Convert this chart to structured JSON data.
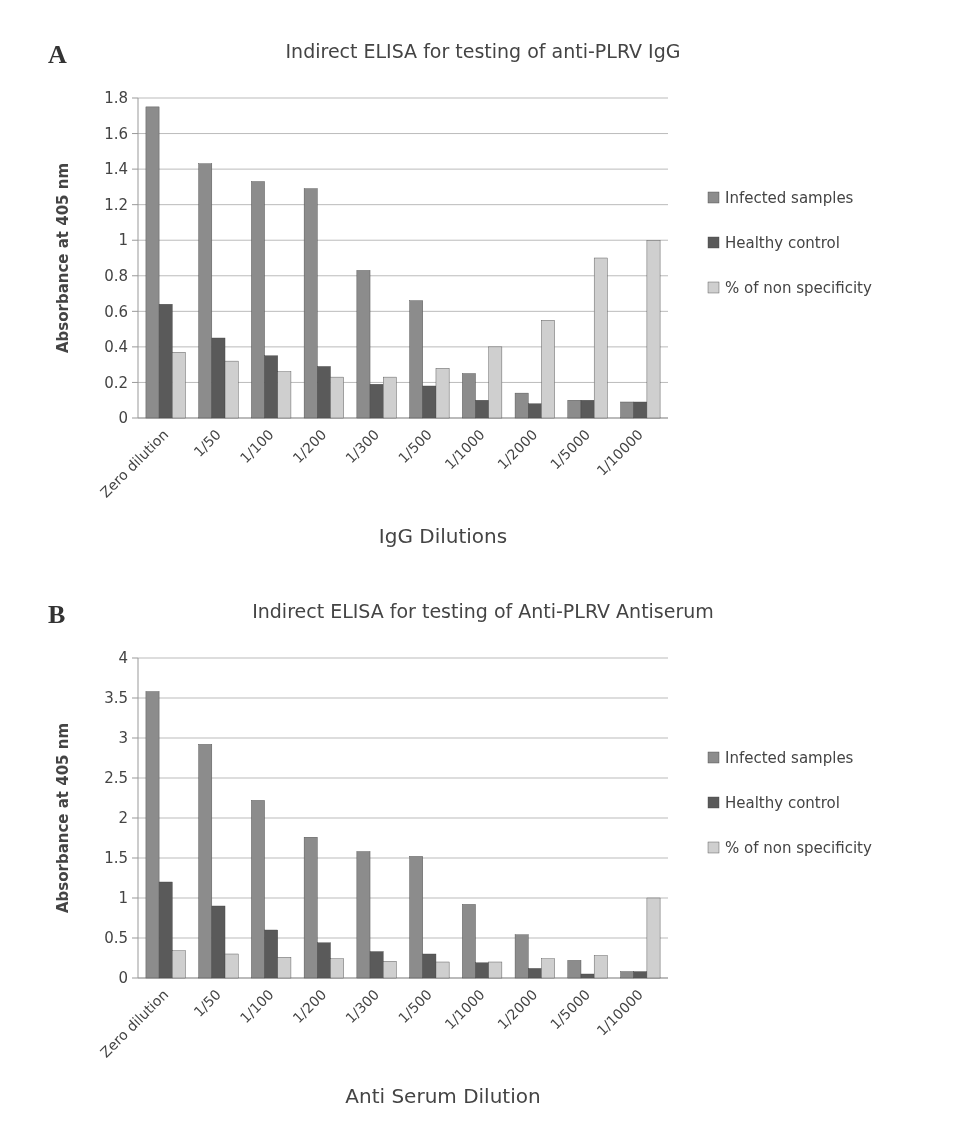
{
  "chart_data": [
    {
      "type": "bar",
      "title": "Indirect ELISA for testing of anti-PLRV IgG",
      "xlabel": "IgG Dilutions",
      "ylabel": "Absorbance at 405 nm",
      "annotations": [
        "A"
      ],
      "categories": [
        "Zero dilution",
        "1/50",
        "1/100",
        "1/200",
        "1/300",
        "1/500",
        "1/1000",
        "1/2000",
        "1/5000",
        "1/10000"
      ],
      "series": [
        {
          "name": "Infected samples",
          "color": "#8c8c8c",
          "values": [
            1.75,
            1.43,
            1.33,
            1.29,
            0.83,
            0.66,
            0.25,
            0.14,
            0.1,
            0.09
          ]
        },
        {
          "name": "Healthy control",
          "color": "#5a5a5a",
          "values": [
            0.64,
            0.45,
            0.35,
            0.29,
            0.19,
            0.18,
            0.1,
            0.08,
            0.1,
            0.09
          ]
        },
        {
          "name": "% of non specificity",
          "color": "#cfcfcf",
          "values": [
            0.37,
            0.32,
            0.26,
            0.23,
            0.23,
            0.28,
            0.4,
            0.55,
            0.9,
            1.0
          ]
        }
      ],
      "ylim": [
        0,
        1.8
      ],
      "yticks": [
        0,
        0.2,
        0.4,
        0.6,
        0.8,
        1,
        1.2,
        1.4,
        1.6,
        1.8
      ],
      "grid": "y",
      "legend": "right"
    },
    {
      "type": "bar",
      "title": "Indirect ELISA for testing of Anti-PLRV Antiserum",
      "xlabel": "Anti Serum Dilution",
      "ylabel": "Absorbance at 405 nm",
      "annotations": [
        "B"
      ],
      "categories": [
        "Zero dilution",
        "1/50",
        "1/100",
        "1/200",
        "1/300",
        "1/500",
        "1/1000",
        "1/2000",
        "1/5000",
        "1/10000"
      ],
      "series": [
        {
          "name": "Infected samples",
          "color": "#8c8c8c",
          "values": [
            3.58,
            2.92,
            2.22,
            1.76,
            1.58,
            1.52,
            0.92,
            0.54,
            0.22,
            0.08
          ]
        },
        {
          "name": "Healthy control",
          "color": "#5a5a5a",
          "values": [
            1.2,
            0.9,
            0.6,
            0.44,
            0.33,
            0.3,
            0.19,
            0.12,
            0.05,
            0.08
          ]
        },
        {
          "name": "% of non specificity",
          "color": "#cfcfcf",
          "values": [
            0.34,
            0.3,
            0.26,
            0.24,
            0.21,
            0.2,
            0.2,
            0.24,
            0.28,
            1.0
          ]
        }
      ],
      "ylim": [
        0,
        4
      ],
      "yticks": [
        0,
        0.5,
        1,
        1.5,
        2,
        2.5,
        3,
        3.5,
        4
      ],
      "grid": "y",
      "legend": "right"
    }
  ]
}
